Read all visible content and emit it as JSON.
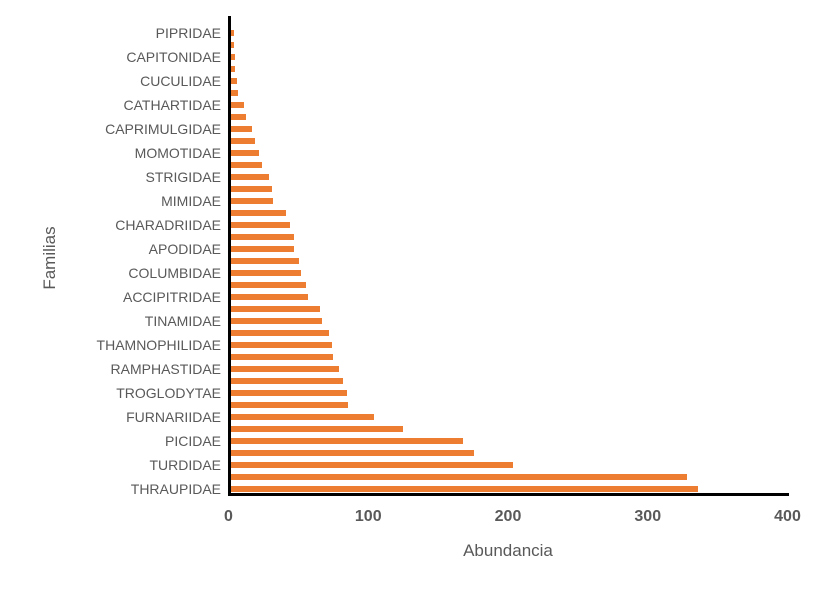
{
  "chart_data": {
    "type": "bar",
    "orientation": "horizontal",
    "title": "",
    "xlabel": "Abundancia",
    "ylabel": "Familias",
    "xlim": [
      0,
      400
    ],
    "x_ticks": [
      0,
      100,
      200,
      300,
      400
    ],
    "grid": false,
    "legend": "none",
    "bar_color": "#ED7D31",
    "axis_line_color": "#000000",
    "text_color": "#595959",
    "background_color": "#FFFFFF",
    "bars": [
      {
        "label": "PIPRIDAE",
        "value": 2
      },
      {
        "label": "",
        "value": 2
      },
      {
        "label": "CAPITONIDAE",
        "value": 3
      },
      {
        "label": "",
        "value": 3
      },
      {
        "label": "CUCULIDAE",
        "value": 4
      },
      {
        "label": "",
        "value": 5
      },
      {
        "label": "CATHARTIDAE",
        "value": 9
      },
      {
        "label": "",
        "value": 11
      },
      {
        "label": "CAPRIMULGIDAE",
        "value": 15
      },
      {
        "label": "",
        "value": 17
      },
      {
        "label": "MOMOTIDAE",
        "value": 20
      },
      {
        "label": "",
        "value": 22
      },
      {
        "label": "STRIGIDAE",
        "value": 27
      },
      {
        "label": "",
        "value": 29
      },
      {
        "label": "MIMIDAE",
        "value": 30
      },
      {
        "label": "",
        "value": 39
      },
      {
        "label": "CHARADRIIDAE",
        "value": 42
      },
      {
        "label": "",
        "value": 45
      },
      {
        "label": "APODIDAE",
        "value": 45
      },
      {
        "label": "",
        "value": 49
      },
      {
        "label": "COLUMBIDAE",
        "value": 50
      },
      {
        "label": "",
        "value": 54
      },
      {
        "label": "ACCIPITRIDAE",
        "value": 55
      },
      {
        "label": "",
        "value": 64
      },
      {
        "label": "TINAMIDAE",
        "value": 65
      },
      {
        "label": "",
        "value": 70
      },
      {
        "label": "THAMNOPHILIDAE",
        "value": 72
      },
      {
        "label": "",
        "value": 73
      },
      {
        "label": "RAMPHASTIDAE",
        "value": 77
      },
      {
        "label": "",
        "value": 80
      },
      {
        "label": "TROGLODYTAE",
        "value": 83
      },
      {
        "label": "",
        "value": 84
      },
      {
        "label": "FURNARIIDAE",
        "value": 102
      },
      {
        "label": "",
        "value": 123
      },
      {
        "label": "PICIDAE",
        "value": 166
      },
      {
        "label": "",
        "value": 174
      },
      {
        "label": "TURDIDAE",
        "value": 202
      },
      {
        "label": "",
        "value": 326
      },
      {
        "label": "THRAUPIDAE",
        "value": 334
      }
    ]
  }
}
